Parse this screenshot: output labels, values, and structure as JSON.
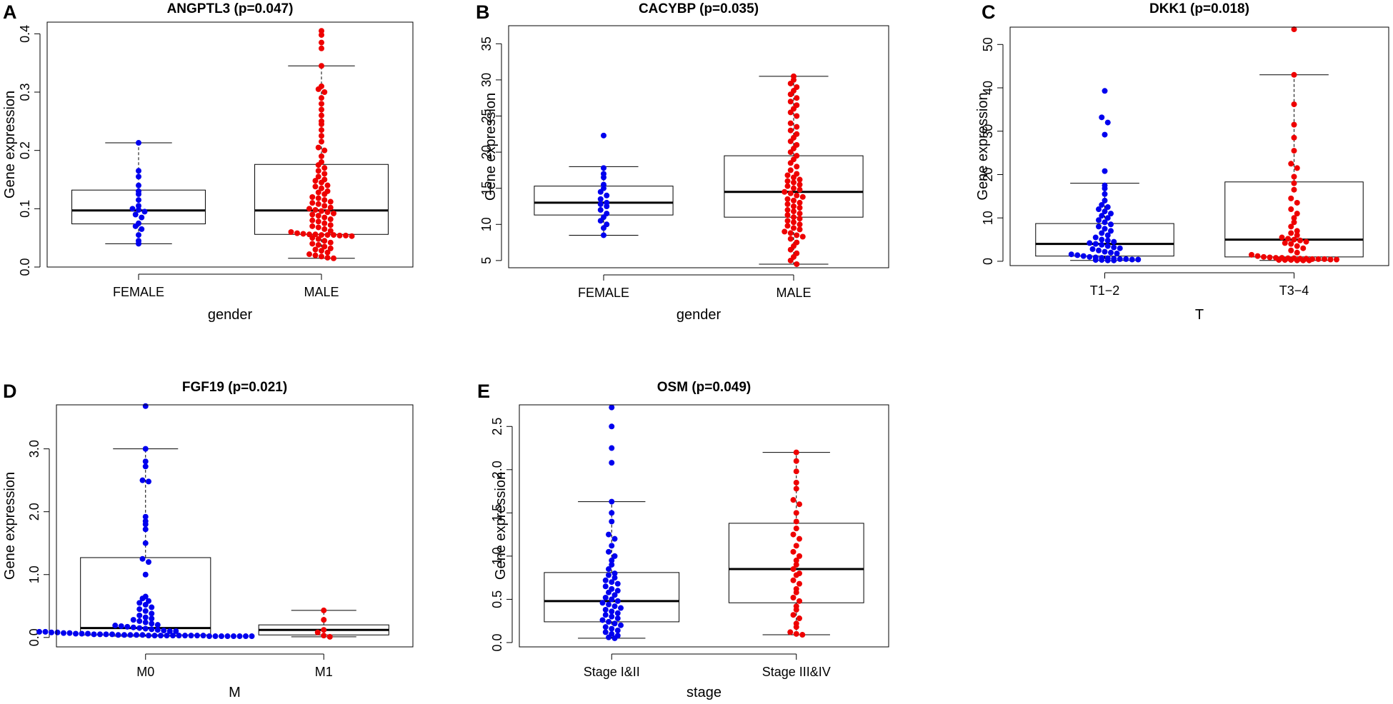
{
  "chart_data": [
    {
      "type": "box",
      "letter": "A",
      "title": "ANGPTL3 (p=0.047)",
      "xlabel": "gender",
      "ylabel": "Gene expression",
      "ylim": [
        0.0,
        0.42
      ],
      "yticks": [
        "0.0",
        "0.1",
        "0.2",
        "0.3",
        "0.4"
      ],
      "ytick_values": [
        0.0,
        0.1,
        0.2,
        0.3,
        0.4
      ],
      "groups": [
        {
          "name": "FEMALE",
          "color": "#0000ee",
          "min": 0.04,
          "q1": 0.074,
          "median": 0.097,
          "q3": 0.132,
          "max": 0.213,
          "points": [
            0.213,
            0.165,
            0.155,
            0.14,
            0.13,
            0.125,
            0.115,
            0.105,
            0.1,
            0.098,
            0.095,
            0.09,
            0.085,
            0.075,
            0.07,
            0.065,
            0.055,
            0.045,
            0.04
          ]
        },
        {
          "name": "MALE",
          "color": "#ee0000",
          "min": 0.015,
          "q1": 0.056,
          "median": 0.097,
          "q3": 0.176,
          "max": 0.345,
          "points": [
            0.405,
            0.398,
            0.385,
            0.375,
            0.345,
            0.31,
            0.305,
            0.3,
            0.29,
            0.28,
            0.27,
            0.26,
            0.25,
            0.245,
            0.235,
            0.225,
            0.215,
            0.205,
            0.2,
            0.19,
            0.18,
            0.175,
            0.17,
            0.165,
            0.16,
            0.155,
            0.15,
            0.148,
            0.145,
            0.14,
            0.138,
            0.135,
            0.13,
            0.128,
            0.125,
            0.12,
            0.118,
            0.115,
            0.112,
            0.11,
            0.108,
            0.105,
            0.102,
            0.1,
            0.098,
            0.096,
            0.094,
            0.092,
            0.09,
            0.088,
            0.085,
            0.082,
            0.08,
            0.078,
            0.075,
            0.072,
            0.07,
            0.068,
            0.065,
            0.062,
            0.06,
            0.058,
            0.057,
            0.056,
            0.056,
            0.055,
            0.055,
            0.055,
            0.054,
            0.054,
            0.053,
            0.05,
            0.048,
            0.045,
            0.042,
            0.04,
            0.038,
            0.035,
            0.032,
            0.03,
            0.028,
            0.025,
            0.022,
            0.02,
            0.018,
            0.016,
            0.015
          ]
        }
      ]
    },
    {
      "type": "box",
      "letter": "B",
      "title": "CACYBP (p=0.035)",
      "xlabel": "gender",
      "ylabel": "Gene expression",
      "ylim": [
        4.0,
        37.5
      ],
      "yticks": [
        "5",
        "10",
        "15",
        "20",
        "25",
        "30",
        "35"
      ],
      "ytick_values": [
        5,
        10,
        15,
        20,
        25,
        30,
        35
      ],
      "groups": [
        {
          "name": "FEMALE",
          "color": "#0000ee",
          "min": 8.5,
          "q1": 11.3,
          "median": 13.0,
          "q3": 15.3,
          "max": 18.0,
          "points": [
            22.3,
            17.8,
            17.0,
            16.5,
            15.5,
            15.0,
            14.5,
            14.0,
            13.5,
            13.0,
            12.8,
            12.5,
            12.0,
            11.5,
            11.0,
            10.5,
            10.0,
            9.5,
            8.5
          ]
        },
        {
          "name": "MALE",
          "color": "#ee0000",
          "min": 4.5,
          "q1": 11.0,
          "median": 14.5,
          "q3": 19.5,
          "max": 30.5,
          "points": [
            30.5,
            30.0,
            29.5,
            29.0,
            28.5,
            28.0,
            27.5,
            27.0,
            26.5,
            26.0,
            25.5,
            25.0,
            24.0,
            23.5,
            23.0,
            22.5,
            22.0,
            21.5,
            21.0,
            20.5,
            20.0,
            19.5,
            19.0,
            18.5,
            18.0,
            17.5,
            17.0,
            16.8,
            16.5,
            16.2,
            16.0,
            15.8,
            15.5,
            15.3,
            15.0,
            14.8,
            14.5,
            14.3,
            14.0,
            13.8,
            13.5,
            13.3,
            13.0,
            12.8,
            12.5,
            12.3,
            12.0,
            11.8,
            11.5,
            11.3,
            11.0,
            10.8,
            10.5,
            10.3,
            10.0,
            9.8,
            9.5,
            9.3,
            9.0,
            8.8,
            8.5,
            8.3,
            8.0,
            7.5,
            7.0,
            6.5,
            6.0,
            5.5,
            5.0,
            4.5
          ]
        }
      ]
    },
    {
      "type": "box",
      "letter": "C",
      "title": "DKK1 (p=0.018)",
      "xlabel": "T",
      "ylabel": "Gene expression",
      "ylim": [
        -1.0,
        54.0
      ],
      "yticks": [
        "0",
        "10",
        "20",
        "30",
        "40",
        "50"
      ],
      "ytick_values": [
        0,
        10,
        20,
        30,
        40,
        50
      ],
      "groups": [
        {
          "name": "T1−2",
          "color": "#0000ee",
          "min": 0.2,
          "q1": 1.2,
          "median": 4.0,
          "q3": 8.7,
          "max": 18.0,
          "points": [
            39.3,
            33.2,
            32.0,
            29.2,
            20.8,
            17.5,
            16.8,
            15.5,
            14.0,
            13.0,
            12.5,
            12.0,
            11.5,
            11.0,
            10.5,
            10.0,
            9.5,
            9.0,
            8.5,
            8.0,
            7.5,
            7.0,
            6.5,
            6.0,
            5.5,
            5.0,
            4.8,
            4.5,
            4.2,
            4.0,
            3.8,
            3.5,
            3.2,
            3.0,
            2.8,
            2.5,
            2.2,
            2.0,
            1.8,
            1.6,
            1.4,
            1.2,
            1.0,
            0.9,
            0.8,
            0.7,
            0.6,
            0.5,
            0.5,
            0.4,
            0.4,
            0.3,
            0.3,
            0.2,
            0.2
          ]
        },
        {
          "name": "T3−4",
          "color": "#ee0000",
          "min": 0.2,
          "q1": 1.0,
          "median": 5.0,
          "q3": 18.3,
          "max": 43.0,
          "points": [
            53.5,
            43.0,
            36.2,
            31.5,
            28.5,
            25.5,
            22.5,
            21.5,
            19.5,
            18.0,
            16.5,
            14.5,
            13.5,
            12.0,
            11.0,
            10.0,
            9.0,
            8.0,
            7.0,
            6.5,
            6.0,
            5.5,
            5.2,
            5.0,
            4.8,
            4.5,
            4.2,
            4.0,
            3.5,
            3.0,
            2.5,
            2.0,
            1.5,
            1.2,
            1.0,
            0.9,
            0.8,
            0.8,
            0.7,
            0.7,
            0.6,
            0.6,
            0.5,
            0.5,
            0.5,
            0.4,
            0.4,
            0.3,
            0.3,
            0.3,
            0.2,
            0.2,
            0.2
          ]
        }
      ]
    },
    {
      "type": "box",
      "letter": "D",
      "title": "FGF19 (p=0.021)",
      "xlabel": "M",
      "ylabel": "Gene expression",
      "ylim": [
        -0.15,
        3.7
      ],
      "yticks": [
        "0.0",
        "1.0",
        "2.0",
        "3.0"
      ],
      "ytick_values": [
        0.0,
        1.0,
        2.0,
        3.0
      ],
      "groups": [
        {
          "name": "M0",
          "color": "#0000ee",
          "min": 0.02,
          "q1": 0.04,
          "median": 0.15,
          "q3": 1.27,
          "max": 3.0,
          "points": [
            3.68,
            3.0,
            2.8,
            2.72,
            2.5,
            2.48,
            1.92,
            1.85,
            1.8,
            1.72,
            1.5,
            1.25,
            1.2,
            1.0,
            0.65,
            0.62,
            0.58,
            0.55,
            0.52,
            0.48,
            0.45,
            0.42,
            0.38,
            0.35,
            0.32,
            0.3,
            0.28,
            0.26,
            0.24,
            0.22,
            0.2,
            0.19,
            0.18,
            0.17,
            0.16,
            0.15,
            0.14,
            0.13,
            0.12,
            0.11,
            0.1,
            0.1,
            0.09,
            0.09,
            0.08,
            0.08,
            0.07,
            0.07,
            0.06,
            0.06,
            0.06,
            0.05,
            0.05,
            0.05,
            0.05,
            0.04,
            0.04,
            0.04,
            0.04,
            0.04,
            0.03,
            0.03,
            0.03,
            0.03,
            0.03,
            0.03,
            0.03,
            0.03,
            0.03,
            0.03,
            0.02,
            0.02,
            0.02,
            0.02,
            0.02,
            0.02,
            0.02,
            0.02
          ]
        },
        {
          "name": "M1",
          "color": "#ee0000",
          "min": 0.01,
          "q1": 0.04,
          "median": 0.12,
          "q3": 0.2,
          "max": 0.43,
          "points": [
            0.43,
            0.28,
            0.12,
            0.08,
            0.03,
            0.01
          ]
        }
      ]
    },
    {
      "type": "box",
      "letter": "E",
      "title": "OSM (p=0.049)",
      "xlabel": "stage",
      "ylabel": "Gene expression",
      "ylim": [
        -0.05,
        2.75
      ],
      "yticks": [
        "0.0",
        "0.5",
        "1.0",
        "1.5",
        "2.0",
        "2.5"
      ],
      "ytick_values": [
        0.0,
        0.5,
        1.0,
        1.5,
        2.0,
        2.5
      ],
      "groups": [
        {
          "name": "Stage I&II",
          "color": "#0000ee",
          "min": 0.05,
          "q1": 0.24,
          "median": 0.48,
          "q3": 0.81,
          "max": 1.63,
          "points": [
            2.72,
            2.5,
            2.25,
            2.08,
            1.63,
            1.5,
            1.4,
            1.25,
            1.2,
            1.12,
            1.05,
            1.0,
            0.95,
            0.9,
            0.85,
            0.8,
            0.78,
            0.75,
            0.72,
            0.7,
            0.68,
            0.65,
            0.62,
            0.6,
            0.58,
            0.55,
            0.52,
            0.5,
            0.48,
            0.46,
            0.44,
            0.42,
            0.4,
            0.38,
            0.36,
            0.34,
            0.32,
            0.3,
            0.28,
            0.26,
            0.24,
            0.22,
            0.2,
            0.18,
            0.16,
            0.14,
            0.12,
            0.1,
            0.08,
            0.06,
            0.05
          ]
        },
        {
          "name": "Stage III&IV",
          "color": "#ee0000",
          "min": 0.09,
          "q1": 0.46,
          "median": 0.85,
          "q3": 1.38,
          "max": 2.2,
          "points": [
            2.2,
            2.1,
            1.98,
            1.85,
            1.78,
            1.65,
            1.6,
            1.5,
            1.4,
            1.32,
            1.25,
            1.2,
            1.12,
            1.05,
            1.0,
            0.95,
            0.9,
            0.85,
            0.8,
            0.78,
            0.72,
            0.68,
            0.62,
            0.58,
            0.52,
            0.48,
            0.42,
            0.38,
            0.32,
            0.28,
            0.22,
            0.18,
            0.12,
            0.1,
            0.09
          ]
        }
      ]
    }
  ]
}
